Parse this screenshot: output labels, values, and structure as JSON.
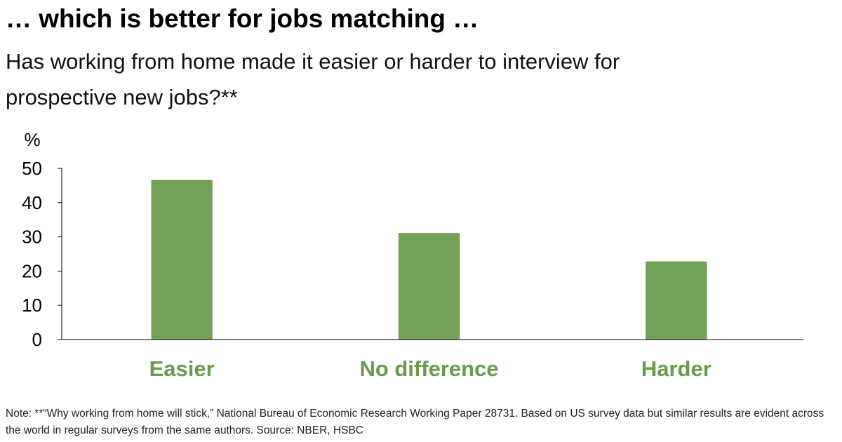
{
  "title": "… which is better for jobs matching …",
  "subtitle": "Has working from home made it easier or harder to interview for prospective new jobs?**",
  "note": "Note: **“Why working from home will stick,” National Bureau of Economic Research Working Paper 28731. Based on US survey data but similar results are evident across the world in regular surveys from the same authors. Source: NBER, HSBC",
  "chart_data": {
    "type": "bar",
    "title": "… which is better for jobs matching …",
    "subtitle": "Has working from home made it easier or harder to interview for prospective new jobs?**",
    "ylabel": "%",
    "categories": [
      "Easier",
      "No difference",
      "Harder"
    ],
    "values": [
      46.5,
      31,
      22.7
    ],
    "ylim": [
      0,
      50
    ],
    "yticks": [
      0,
      10,
      20,
      30,
      40,
      50
    ],
    "grid": false,
    "legend": "none",
    "bar_color": "#72a257",
    "category_label_color": "#6a9b4c"
  }
}
